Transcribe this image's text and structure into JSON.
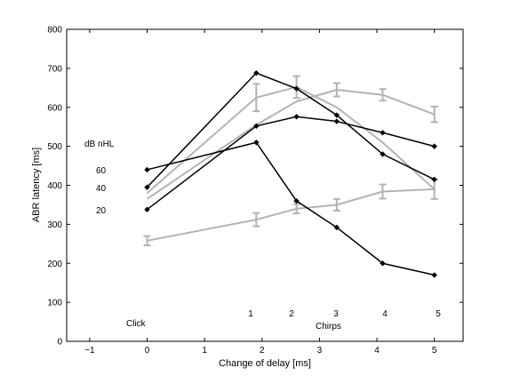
{
  "chart_data": {
    "type": "line",
    "xlabel": "Change of delay [ms]",
    "ylabel": "ABR latency [ms]",
    "xlim": [
      -1.4,
      5.5
    ],
    "ylim": [
      0,
      800
    ],
    "xticks": [
      -1,
      0,
      1,
      2,
      3,
      4,
      5
    ],
    "yticks": [
      0,
      100,
      200,
      300,
      400,
      500,
      600,
      700,
      800
    ],
    "grid": false,
    "legend": "none",
    "annotations": {
      "level_header": "dB nHL",
      "levels": [
        "60",
        "40",
        "20"
      ],
      "click_label": "Click",
      "chirps_label": "Chirps",
      "chirp_numbers": [
        "1",
        "2",
        "3",
        "4",
        "5"
      ]
    },
    "black_series": [
      {
        "x": [
          0,
          1.9,
          2.6,
          3.3,
          4.1,
          5.0
        ],
        "y": [
          440,
          510,
          360,
          292,
          200,
          170
        ]
      },
      {
        "x": [
          0,
          1.9,
          2.6,
          3.3,
          4.1,
          5.0
        ],
        "y": [
          395,
          688,
          648,
          580,
          480,
          415
        ]
      },
      {
        "x": [
          0,
          1.9,
          2.6,
          3.3,
          4.1,
          5.0
        ],
        "y": [
          338,
          552,
          576,
          564,
          535,
          500
        ]
      }
    ],
    "gray_series": [
      {
        "x": [
          0,
          1.9,
          2.6,
          3.3,
          4.1,
          5.0
        ],
        "y": [
          258,
          312,
          340,
          350,
          384,
          390
        ],
        "err": [
          12,
          17,
          12,
          15,
          18,
          25
        ]
      },
      {
        "x": [
          0,
          1.9,
          2.6,
          3.3,
          4.1,
          5.0
        ],
        "y": [
          365,
          555,
          615,
          645,
          632,
          582
        ],
        "err": [
          0,
          0,
          0,
          17,
          15,
          20
        ]
      },
      {
        "x": [
          0,
          1.9,
          2.6,
          3.3,
          4.1,
          5.0
        ],
        "y": [
          380,
          625,
          652,
          600,
          510,
          390
        ],
        "err": [
          0,
          35,
          28,
          0,
          0,
          0
        ]
      }
    ],
    "colors": {
      "black": "#000000",
      "gray": "#b3b3b3"
    }
  }
}
